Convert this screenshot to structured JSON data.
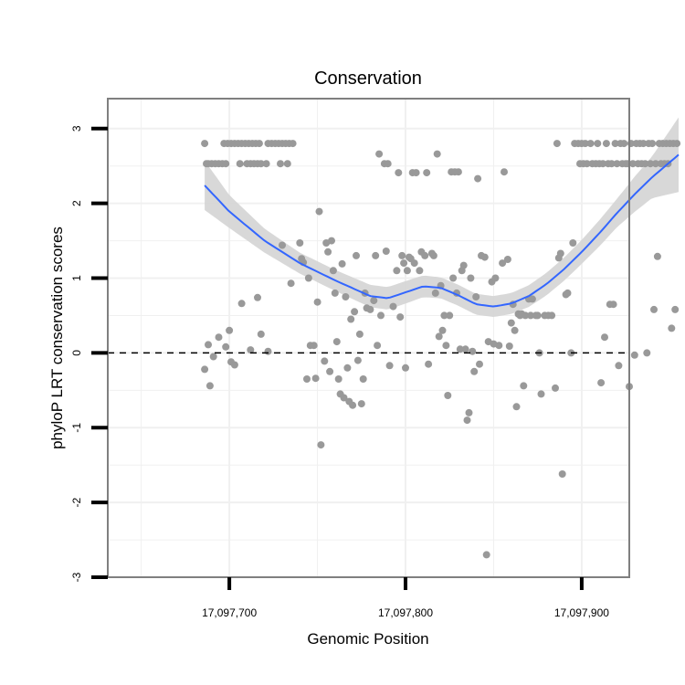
{
  "chart_data": {
    "type": "scatter",
    "title": "Conservation",
    "xlabel": "Genomic Position",
    "ylabel": "phyloP LRT conservation scores",
    "xlim": [
      17097631,
      17097927
    ],
    "ylim": [
      -3,
      3.4
    ],
    "xticks": [
      {
        "value": 17097700,
        "label": "17,097,700"
      },
      {
        "value": 17097800,
        "label": "17,097,800"
      },
      {
        "value": 17097900,
        "label": "17,097,900"
      }
    ],
    "yticks": [
      {
        "value": -3,
        "label": "-3"
      },
      {
        "value": -2,
        "label": "-2"
      },
      {
        "value": -1,
        "label": "-1"
      },
      {
        "value": 0,
        "label": "0"
      },
      {
        "value": 1,
        "label": "1"
      },
      {
        "value": 2,
        "label": "2"
      },
      {
        "value": 3,
        "label": "3"
      }
    ],
    "grid": true,
    "reference_line": {
      "y": 0,
      "style": "dashed"
    },
    "colors": {
      "points": "#999999",
      "smooth": "#3366ff",
      "ribbon": "#d4d4d4",
      "grid": "#f0f0f0",
      "frame": "#7f7f7f"
    },
    "points": [
      [
        17097686,
        2.8
      ],
      [
        17097687,
        2.53
      ],
      [
        17097688,
        2.53
      ],
      [
        17097690,
        2.53
      ],
      [
        17097692,
        2.53
      ],
      [
        17097694,
        2.53
      ],
      [
        17097696,
        2.53
      ],
      [
        17097698,
        2.53
      ],
      [
        17097697,
        2.8
      ],
      [
        17097699,
        2.8
      ],
      [
        17097701,
        2.8
      ],
      [
        17097703,
        2.8
      ],
      [
        17097705,
        2.8
      ],
      [
        17097707,
        2.8
      ],
      [
        17097709,
        2.8
      ],
      [
        17097711,
        2.8
      ],
      [
        17097713,
        2.8
      ],
      [
        17097715,
        2.8
      ],
      [
        17097717,
        2.8
      ],
      [
        17097706,
        2.53
      ],
      [
        17097710,
        2.53
      ],
      [
        17097712,
        2.53
      ],
      [
        17097714,
        2.53
      ],
      [
        17097716,
        2.53
      ],
      [
        17097718,
        2.53
      ],
      [
        17097721,
        2.53
      ],
      [
        17097729,
        2.53
      ],
      [
        17097733,
        2.53
      ],
      [
        17097722,
        2.8
      ],
      [
        17097724,
        2.8
      ],
      [
        17097726,
        2.8
      ],
      [
        17097728,
        2.8
      ],
      [
        17097730,
        2.8
      ],
      [
        17097732,
        2.8
      ],
      [
        17097734,
        2.8
      ],
      [
        17097736,
        2.8
      ],
      [
        17097686,
        -0.22
      ],
      [
        17097688,
        0.11
      ],
      [
        17097689,
        -0.44
      ],
      [
        17097691,
        -0.05
      ],
      [
        17097694,
        0.21
      ],
      [
        17097698,
        0.08
      ],
      [
        17097700,
        0.3
      ],
      [
        17097701,
        -0.12
      ],
      [
        17097703,
        -0.16
      ],
      [
        17097707,
        0.66
      ],
      [
        17097712,
        0.04
      ],
      [
        17097716,
        0.74
      ],
      [
        17097718,
        0.25
      ],
      [
        17097722,
        0.02
      ],
      [
        17097730,
        1.44
      ],
      [
        17097735,
        0.93
      ],
      [
        17097740,
        1.47
      ],
      [
        17097741,
        1.26
      ],
      [
        17097742,
        1.21
      ],
      [
        17097744,
        -0.35
      ],
      [
        17097745,
        1.0
      ],
      [
        17097746,
        0.1
      ],
      [
        17097748,
        0.1
      ],
      [
        17097749,
        -0.34
      ],
      [
        17097750,
        0.68
      ],
      [
        17097751,
        1.89
      ],
      [
        17097752,
        -1.23
      ],
      [
        17097754,
        -0.11
      ],
      [
        17097755,
        1.47
      ],
      [
        17097756,
        1.35
      ],
      [
        17097757,
        -0.25
      ],
      [
        17097758,
        1.5
      ],
      [
        17097759,
        1.1
      ],
      [
        17097760,
        0.8
      ],
      [
        17097761,
        0.15
      ],
      [
        17097762,
        -0.35
      ],
      [
        17097763,
        -0.55
      ],
      [
        17097764,
        1.19
      ],
      [
        17097765,
        -0.6
      ],
      [
        17097766,
        0.75
      ],
      [
        17097767,
        -0.2
      ],
      [
        17097768,
        -0.65
      ],
      [
        17097769,
        0.45
      ],
      [
        17097770,
        -0.7
      ],
      [
        17097771,
        0.55
      ],
      [
        17097772,
        1.3
      ],
      [
        17097773,
        -0.1
      ],
      [
        17097774,
        0.25
      ],
      [
        17097775,
        -0.68
      ],
      [
        17097776,
        -0.35
      ],
      [
        17097777,
        0.8
      ],
      [
        17097778,
        0.6
      ],
      [
        17097780,
        0.58
      ],
      [
        17097782,
        0.7
      ],
      [
        17097783,
        1.3
      ],
      [
        17097784,
        0.1
      ],
      [
        17097785,
        2.66
      ],
      [
        17097786,
        0.5
      ],
      [
        17097788,
        2.53
      ],
      [
        17097789,
        1.36
      ],
      [
        17097790,
        2.53
      ],
      [
        17097791,
        -0.17
      ],
      [
        17097793,
        0.62
      ],
      [
        17097795,
        1.1
      ],
      [
        17097796,
        2.41
      ],
      [
        17097797,
        0.48
      ],
      [
        17097798,
        1.3
      ],
      [
        17097799,
        1.2
      ],
      [
        17097800,
        -0.2
      ],
      [
        17097801,
        1.1
      ],
      [
        17097802,
        1.28
      ],
      [
        17097803,
        1.26
      ],
      [
        17097804,
        2.41
      ],
      [
        17097805,
        1.2
      ],
      [
        17097806,
        2.41
      ],
      [
        17097808,
        1.1
      ],
      [
        17097809,
        1.35
      ],
      [
        17097811,
        1.3
      ],
      [
        17097812,
        2.41
      ],
      [
        17097813,
        -0.15
      ],
      [
        17097815,
        1.33
      ],
      [
        17097816,
        1.3
      ],
      [
        17097817,
        0.8
      ],
      [
        17097818,
        2.66
      ],
      [
        17097819,
        0.22
      ],
      [
        17097820,
        0.9
      ],
      [
        17097821,
        0.3
      ],
      [
        17097822,
        0.5
      ],
      [
        17097823,
        0.1
      ],
      [
        17097824,
        -0.57
      ],
      [
        17097825,
        0.5
      ],
      [
        17097826,
        2.42
      ],
      [
        17097827,
        1.0
      ],
      [
        17097828,
        2.42
      ],
      [
        17097829,
        0.8
      ],
      [
        17097830,
        2.42
      ],
      [
        17097831,
        0.05
      ],
      [
        17097832,
        1.1
      ],
      [
        17097833,
        1.17
      ],
      [
        17097834,
        0.05
      ],
      [
        17097835,
        -0.9
      ],
      [
        17097836,
        -0.8
      ],
      [
        17097837,
        1.0
      ],
      [
        17097838,
        0.02
      ],
      [
        17097839,
        -0.25
      ],
      [
        17097840,
        0.75
      ],
      [
        17097841,
        2.33
      ],
      [
        17097842,
        -0.15
      ],
      [
        17097843,
        1.3
      ],
      [
        17097845,
        1.28
      ],
      [
        17097846,
        -2.7
      ],
      [
        17097847,
        0.15
      ],
      [
        17097849,
        0.95
      ],
      [
        17097850,
        0.12
      ],
      [
        17097851,
        1.0
      ],
      [
        17097853,
        0.1
      ],
      [
        17097855,
        1.2
      ],
      [
        17097856,
        2.42
      ],
      [
        17097858,
        1.25
      ],
      [
        17097859,
        0.09
      ],
      [
        17097860,
        0.4
      ],
      [
        17097861,
        0.65
      ],
      [
        17097862,
        0.3
      ],
      [
        17097863,
        -0.72
      ],
      [
        17097864,
        0.52
      ],
      [
        17097865,
        0.5
      ],
      [
        17097866,
        0.52
      ],
      [
        17097867,
        -0.44
      ],
      [
        17097868,
        0.5
      ],
      [
        17097870,
        0.72
      ],
      [
        17097871,
        0.5
      ],
      [
        17097872,
        0.72
      ],
      [
        17097874,
        0.5
      ],
      [
        17097875,
        0.5
      ],
      [
        17097876,
        0.0
      ],
      [
        17097877,
        -0.55
      ],
      [
        17097879,
        0.5
      ],
      [
        17097881,
        0.5
      ],
      [
        17097883,
        0.5
      ],
      [
        17097885,
        -0.47
      ],
      [
        17097886,
        2.8
      ],
      [
        17097887,
        1.27
      ],
      [
        17097888,
        1.33
      ],
      [
        17097889,
        -1.62
      ],
      [
        17097891,
        0.78
      ],
      [
        17097892,
        0.8
      ],
      [
        17097894,
        0.0
      ],
      [
        17097895,
        1.47
      ],
      [
        17097896,
        2.8
      ],
      [
        17097898,
        2.8
      ],
      [
        17097899,
        2.53
      ],
      [
        17097900,
        2.8
      ],
      [
        17097901,
        2.53
      ],
      [
        17097902,
        2.8
      ],
      [
        17097903,
        2.53
      ],
      [
        17097905,
        2.8
      ],
      [
        17097906,
        2.53
      ],
      [
        17097908,
        2.53
      ],
      [
        17097909,
        2.8
      ],
      [
        17097910,
        2.53
      ],
      [
        17097911,
        -0.4
      ],
      [
        17097912,
        2.53
      ],
      [
        17097913,
        0.21
      ],
      [
        17097914,
        2.8
      ],
      [
        17097915,
        2.53
      ],
      [
        17097916,
        0.65
      ],
      [
        17097917,
        2.53
      ],
      [
        17097918,
        0.65
      ],
      [
        17097919,
        2.8
      ],
      [
        17097920,
        2.53
      ],
      [
        17097921,
        -0.17
      ],
      [
        17097922,
        2.8
      ],
      [
        17097923,
        2.53
      ],
      [
        17097924,
        2.8
      ],
      [
        17097925,
        2.53
      ],
      [
        17097926,
        2.53
      ],
      [
        17097927,
        -0.45
      ],
      [
        17097928,
        2.8
      ],
      [
        17097929,
        2.53
      ],
      [
        17097930,
        -0.03
      ],
      [
        17097931,
        2.8
      ],
      [
        17097932,
        2.53
      ],
      [
        17097933,
        2.8
      ],
      [
        17097934,
        2.53
      ],
      [
        17097935,
        2.8
      ],
      [
        17097936,
        2.53
      ],
      [
        17097937,
        0.0
      ],
      [
        17097938,
        2.8
      ],
      [
        17097939,
        2.53
      ],
      [
        17097940,
        2.8
      ],
      [
        17097941,
        0.58
      ],
      [
        17097942,
        2.53
      ],
      [
        17097943,
        1.29
      ],
      [
        17097944,
        2.8
      ],
      [
        17097945,
        2.53
      ],
      [
        17097946,
        2.8
      ],
      [
        17097947,
        2.53
      ],
      [
        17097948,
        2.8
      ],
      [
        17097949,
        2.53
      ],
      [
        17097950,
        2.8
      ],
      [
        17097951,
        0.33
      ],
      [
        17097952,
        2.8
      ],
      [
        17097953,
        0.58
      ],
      [
        17097954,
        2.8
      ]
    ],
    "smooth": [
      [
        17097686,
        2.24
      ],
      [
        17097700,
        1.89
      ],
      [
        17097720,
        1.5
      ],
      [
        17097740,
        1.2
      ],
      [
        17097760,
        0.97
      ],
      [
        17097780,
        0.76
      ],
      [
        17097790,
        0.73
      ],
      [
        17097800,
        0.81
      ],
      [
        17097810,
        0.89
      ],
      [
        17097820,
        0.87
      ],
      [
        17097830,
        0.77
      ],
      [
        17097840,
        0.65
      ],
      [
        17097850,
        0.62
      ],
      [
        17097860,
        0.66
      ],
      [
        17097870,
        0.76
      ],
      [
        17097880,
        0.92
      ],
      [
        17097890,
        1.12
      ],
      [
        17097900,
        1.35
      ],
      [
        17097910,
        1.6
      ],
      [
        17097920,
        1.87
      ],
      [
        17097930,
        2.12
      ],
      [
        17097940,
        2.35
      ],
      [
        17097955,
        2.65
      ]
    ],
    "ribbon_halfwidth": [
      [
        17097686,
        0.33
      ],
      [
        17097700,
        0.22
      ],
      [
        17097720,
        0.16
      ],
      [
        17097740,
        0.14
      ],
      [
        17097760,
        0.14
      ],
      [
        17097780,
        0.15
      ],
      [
        17097800,
        0.15
      ],
      [
        17097820,
        0.14
      ],
      [
        17097840,
        0.14
      ],
      [
        17097860,
        0.14
      ],
      [
        17097880,
        0.15
      ],
      [
        17097900,
        0.16
      ],
      [
        17097920,
        0.19
      ],
      [
        17097940,
        0.28
      ],
      [
        17097955,
        0.5
      ]
    ]
  }
}
